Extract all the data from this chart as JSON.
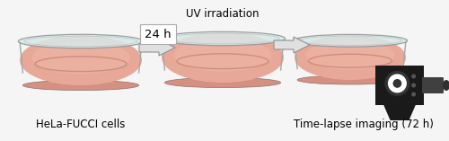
{
  "bg_color": "#f5f5f5",
  "label_hela": "HeLa-FUCCI cells",
  "label_uv": "UV irradiation",
  "label_time": "Time-lapse imaging (72 h)",
  "label_24h": "24 h",
  "dish_fill": "#e8a898",
  "dish_fill2": "#d49080",
  "dish_rim_fill": "#d8e8e8",
  "dish_rim_edge": "#909090",
  "dish_wall_color": "#b0b8b8",
  "dish_inner_line": "#c08878",
  "uv_color": "#c090c8",
  "uv_color2": "#d8aadc",
  "arrow_face": "#e0e0e0",
  "arrow_edge": "#909090",
  "camera_body": "#1a1a1a",
  "camera_lens_outer": "#333333",
  "camera_lens_inner": "#ffffff",
  "camera_dots": "#555555",
  "font_size_label": 8.5,
  "font_size_24h": 9.5
}
